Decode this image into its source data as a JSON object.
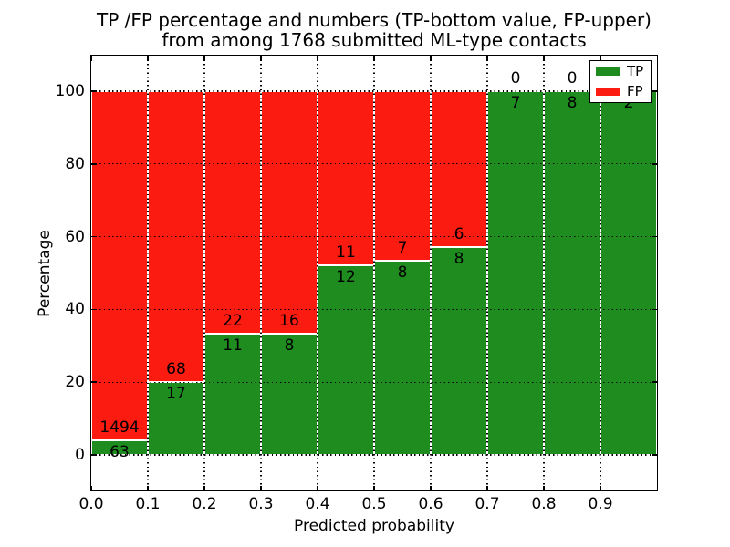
{
  "title": {
    "line1": "TP /FP percentage and numbers (TP-bottom value, FP-upper)",
    "line2": "from among 1768 submitted ML-type contacts"
  },
  "total_contacts": 1768,
  "chart_data": {
    "type": "bar",
    "stacked": true,
    "normalized_to": 100,
    "title": "TP /FP percentage and numbers (TP-bottom value, FP-upper) from among 1768 submitted ML-type contacts",
    "xlabel": "Predicted probability",
    "ylabel": "Percentage",
    "bin_edges": [
      0.0,
      0.1,
      0.2,
      0.3,
      0.4,
      0.5,
      0.6,
      0.7,
      0.8,
      0.9,
      1.0
    ],
    "categories": [
      "0.0-0.1",
      "0.1-0.2",
      "0.2-0.3",
      "0.3-0.4",
      "0.4-0.5",
      "0.5-0.6",
      "0.6-0.7",
      "0.7-0.8",
      "0.8-0.9",
      "0.9-1.0"
    ],
    "series": [
      {
        "name": "TP",
        "color": "#1e8c1e",
        "counts": [
          63,
          17,
          11,
          8,
          12,
          8,
          8,
          7,
          8,
          2
        ]
      },
      {
        "name": "FP",
        "color": "#fb1b10",
        "counts": [
          1494,
          68,
          22,
          16,
          11,
          7,
          6,
          0,
          0,
          0
        ]
      }
    ],
    "tp_percent": [
      4.0,
      20.0,
      33.3,
      33.3,
      52.2,
      53.3,
      57.1,
      100.0,
      100.0,
      100.0
    ],
    "xticks": [
      "0.0",
      "0.1",
      "0.2",
      "0.3",
      "0.4",
      "0.5",
      "0.6",
      "0.7",
      "0.8",
      "0.9"
    ],
    "yticks": [
      0,
      20,
      40,
      60,
      80,
      100
    ],
    "xlim": [
      0.0,
      1.0
    ],
    "ylim": [
      -10,
      110
    ],
    "grid": "dotted-black",
    "legend": {
      "position": "upper right",
      "entries": [
        {
          "label": "TP",
          "color": "#1e8c1e"
        },
        {
          "label": "FP",
          "color": "#fb1b10"
        }
      ]
    }
  }
}
